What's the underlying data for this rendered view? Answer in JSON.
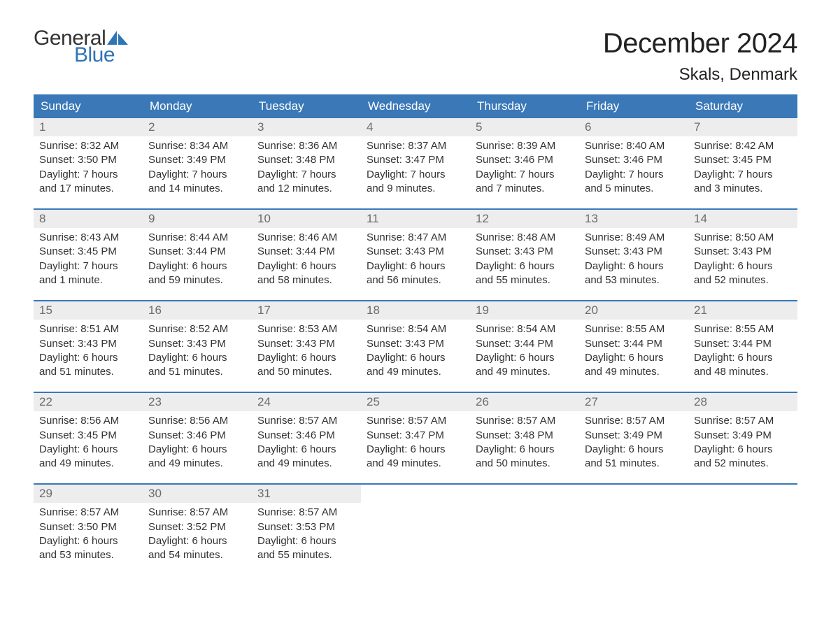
{
  "logo": {
    "text_general": "General",
    "text_blue": "Blue",
    "sail_color": "#2f74b5"
  },
  "header": {
    "month_title": "December 2024",
    "location": "Skals, Denmark"
  },
  "colors": {
    "header_bg": "#3a78b8",
    "header_text": "#ffffff",
    "daynum_bg": "#ededed",
    "daynum_text": "#6b6b6b",
    "body_text": "#333333",
    "week_divider": "#3a78b8"
  },
  "day_names": [
    "Sunday",
    "Monday",
    "Tuesday",
    "Wednesday",
    "Thursday",
    "Friday",
    "Saturday"
  ],
  "weeks": [
    [
      {
        "n": "1",
        "sunrise": "Sunrise: 8:32 AM",
        "sunset": "Sunset: 3:50 PM",
        "dl1": "Daylight: 7 hours",
        "dl2": "and 17 minutes."
      },
      {
        "n": "2",
        "sunrise": "Sunrise: 8:34 AM",
        "sunset": "Sunset: 3:49 PM",
        "dl1": "Daylight: 7 hours",
        "dl2": "and 14 minutes."
      },
      {
        "n": "3",
        "sunrise": "Sunrise: 8:36 AM",
        "sunset": "Sunset: 3:48 PM",
        "dl1": "Daylight: 7 hours",
        "dl2": "and 12 minutes."
      },
      {
        "n": "4",
        "sunrise": "Sunrise: 8:37 AM",
        "sunset": "Sunset: 3:47 PM",
        "dl1": "Daylight: 7 hours",
        "dl2": "and 9 minutes."
      },
      {
        "n": "5",
        "sunrise": "Sunrise: 8:39 AM",
        "sunset": "Sunset: 3:46 PM",
        "dl1": "Daylight: 7 hours",
        "dl2": "and 7 minutes."
      },
      {
        "n": "6",
        "sunrise": "Sunrise: 8:40 AM",
        "sunset": "Sunset: 3:46 PM",
        "dl1": "Daylight: 7 hours",
        "dl2": "and 5 minutes."
      },
      {
        "n": "7",
        "sunrise": "Sunrise: 8:42 AM",
        "sunset": "Sunset: 3:45 PM",
        "dl1": "Daylight: 7 hours",
        "dl2": "and 3 minutes."
      }
    ],
    [
      {
        "n": "8",
        "sunrise": "Sunrise: 8:43 AM",
        "sunset": "Sunset: 3:45 PM",
        "dl1": "Daylight: 7 hours",
        "dl2": "and 1 minute."
      },
      {
        "n": "9",
        "sunrise": "Sunrise: 8:44 AM",
        "sunset": "Sunset: 3:44 PM",
        "dl1": "Daylight: 6 hours",
        "dl2": "and 59 minutes."
      },
      {
        "n": "10",
        "sunrise": "Sunrise: 8:46 AM",
        "sunset": "Sunset: 3:44 PM",
        "dl1": "Daylight: 6 hours",
        "dl2": "and 58 minutes."
      },
      {
        "n": "11",
        "sunrise": "Sunrise: 8:47 AM",
        "sunset": "Sunset: 3:43 PM",
        "dl1": "Daylight: 6 hours",
        "dl2": "and 56 minutes."
      },
      {
        "n": "12",
        "sunrise": "Sunrise: 8:48 AM",
        "sunset": "Sunset: 3:43 PM",
        "dl1": "Daylight: 6 hours",
        "dl2": "and 55 minutes."
      },
      {
        "n": "13",
        "sunrise": "Sunrise: 8:49 AM",
        "sunset": "Sunset: 3:43 PM",
        "dl1": "Daylight: 6 hours",
        "dl2": "and 53 minutes."
      },
      {
        "n": "14",
        "sunrise": "Sunrise: 8:50 AM",
        "sunset": "Sunset: 3:43 PM",
        "dl1": "Daylight: 6 hours",
        "dl2": "and 52 minutes."
      }
    ],
    [
      {
        "n": "15",
        "sunrise": "Sunrise: 8:51 AM",
        "sunset": "Sunset: 3:43 PM",
        "dl1": "Daylight: 6 hours",
        "dl2": "and 51 minutes."
      },
      {
        "n": "16",
        "sunrise": "Sunrise: 8:52 AM",
        "sunset": "Sunset: 3:43 PM",
        "dl1": "Daylight: 6 hours",
        "dl2": "and 51 minutes."
      },
      {
        "n": "17",
        "sunrise": "Sunrise: 8:53 AM",
        "sunset": "Sunset: 3:43 PM",
        "dl1": "Daylight: 6 hours",
        "dl2": "and 50 minutes."
      },
      {
        "n": "18",
        "sunrise": "Sunrise: 8:54 AM",
        "sunset": "Sunset: 3:43 PM",
        "dl1": "Daylight: 6 hours",
        "dl2": "and 49 minutes."
      },
      {
        "n": "19",
        "sunrise": "Sunrise: 8:54 AM",
        "sunset": "Sunset: 3:44 PM",
        "dl1": "Daylight: 6 hours",
        "dl2": "and 49 minutes."
      },
      {
        "n": "20",
        "sunrise": "Sunrise: 8:55 AM",
        "sunset": "Sunset: 3:44 PM",
        "dl1": "Daylight: 6 hours",
        "dl2": "and 49 minutes."
      },
      {
        "n": "21",
        "sunrise": "Sunrise: 8:55 AM",
        "sunset": "Sunset: 3:44 PM",
        "dl1": "Daylight: 6 hours",
        "dl2": "and 48 minutes."
      }
    ],
    [
      {
        "n": "22",
        "sunrise": "Sunrise: 8:56 AM",
        "sunset": "Sunset: 3:45 PM",
        "dl1": "Daylight: 6 hours",
        "dl2": "and 49 minutes."
      },
      {
        "n": "23",
        "sunrise": "Sunrise: 8:56 AM",
        "sunset": "Sunset: 3:46 PM",
        "dl1": "Daylight: 6 hours",
        "dl2": "and 49 minutes."
      },
      {
        "n": "24",
        "sunrise": "Sunrise: 8:57 AM",
        "sunset": "Sunset: 3:46 PM",
        "dl1": "Daylight: 6 hours",
        "dl2": "and 49 minutes."
      },
      {
        "n": "25",
        "sunrise": "Sunrise: 8:57 AM",
        "sunset": "Sunset: 3:47 PM",
        "dl1": "Daylight: 6 hours",
        "dl2": "and 49 minutes."
      },
      {
        "n": "26",
        "sunrise": "Sunrise: 8:57 AM",
        "sunset": "Sunset: 3:48 PM",
        "dl1": "Daylight: 6 hours",
        "dl2": "and 50 minutes."
      },
      {
        "n": "27",
        "sunrise": "Sunrise: 8:57 AM",
        "sunset": "Sunset: 3:49 PM",
        "dl1": "Daylight: 6 hours",
        "dl2": "and 51 minutes."
      },
      {
        "n": "28",
        "sunrise": "Sunrise: 8:57 AM",
        "sunset": "Sunset: 3:49 PM",
        "dl1": "Daylight: 6 hours",
        "dl2": "and 52 minutes."
      }
    ],
    [
      {
        "n": "29",
        "sunrise": "Sunrise: 8:57 AM",
        "sunset": "Sunset: 3:50 PM",
        "dl1": "Daylight: 6 hours",
        "dl2": "and 53 minutes."
      },
      {
        "n": "30",
        "sunrise": "Sunrise: 8:57 AM",
        "sunset": "Sunset: 3:52 PM",
        "dl1": "Daylight: 6 hours",
        "dl2": "and 54 minutes."
      },
      {
        "n": "31",
        "sunrise": "Sunrise: 8:57 AM",
        "sunset": "Sunset: 3:53 PM",
        "dl1": "Daylight: 6 hours",
        "dl2": "and 55 minutes."
      },
      {
        "empty": true
      },
      {
        "empty": true
      },
      {
        "empty": true
      },
      {
        "empty": true
      }
    ]
  ]
}
